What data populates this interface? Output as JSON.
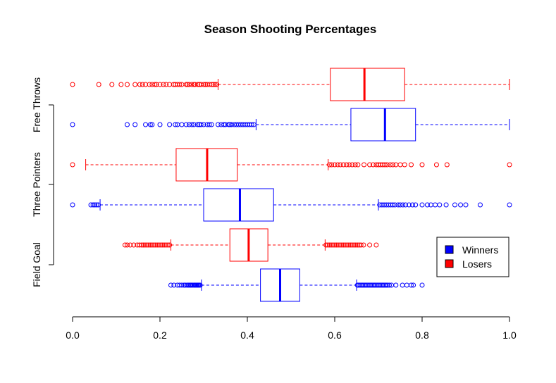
{
  "chart_data": {
    "type": "boxplot",
    "title": "Season Shooting Percentages",
    "xlabel": "",
    "ylabel": "",
    "xlim": [
      0,
      1
    ],
    "x_ticks": [
      "0.0",
      "0.2",
      "0.4",
      "0.6",
      "0.8",
      "1.0"
    ],
    "x_tick_values": [
      0,
      0.2,
      0.4,
      0.6,
      0.8,
      1.0
    ],
    "orientation": "horizontal",
    "grid": false,
    "legend_position": "bottom-right",
    "groups": [
      "Field Goal",
      "Three Pointers",
      "Free Throws"
    ],
    "series_colors": {
      "Winners": "#0000ff",
      "Losers": "#ff0000"
    },
    "legend": [
      {
        "name": "Winners",
        "color": "#0000ff"
      },
      {
        "name": "Losers",
        "color": "#ff0000"
      }
    ],
    "boxes": [
      {
        "group": "Field Goal",
        "series": "Winners",
        "whisker_low": 0.295,
        "q1": 0.43,
        "median": 0.475,
        "q3": 0.52,
        "whisker_high": 0.65,
        "outliers": [
          0.225,
          0.232,
          0.24,
          0.245,
          0.25,
          0.255,
          0.258,
          0.262,
          0.265,
          0.268,
          0.27,
          0.272,
          0.275,
          0.278,
          0.28,
          0.282,
          0.284,
          0.286,
          0.288,
          0.29,
          0.292,
          0.652,
          0.655,
          0.658,
          0.661,
          0.664,
          0.667,
          0.67,
          0.673,
          0.676,
          0.679,
          0.682,
          0.685,
          0.688,
          0.691,
          0.694,
          0.697,
          0.7,
          0.703,
          0.706,
          0.709,
          0.712,
          0.715,
          0.718,
          0.721,
          0.725,
          0.73,
          0.74,
          0.755,
          0.765,
          0.775,
          0.78,
          0.8
        ]
      },
      {
        "group": "Field Goal",
        "series": "Losers",
        "whisker_low": 0.225,
        "q1": 0.36,
        "median": 0.403,
        "q3": 0.447,
        "whisker_high": 0.578,
        "outliers": [
          0.12,
          0.125,
          0.132,
          0.14,
          0.148,
          0.153,
          0.158,
          0.162,
          0.166,
          0.17,
          0.174,
          0.178,
          0.182,
          0.186,
          0.19,
          0.194,
          0.198,
          0.202,
          0.206,
          0.21,
          0.214,
          0.218,
          0.222,
          0.58,
          0.584,
          0.588,
          0.592,
          0.596,
          0.6,
          0.604,
          0.608,
          0.612,
          0.616,
          0.62,
          0.624,
          0.628,
          0.632,
          0.636,
          0.64,
          0.644,
          0.648,
          0.652,
          0.656,
          0.66,
          0.666,
          0.68,
          0.695
        ]
      },
      {
        "group": "Three Pointers",
        "series": "Winners",
        "whisker_low": 0.063,
        "q1": 0.3,
        "median": 0.383,
        "q3": 0.46,
        "whisker_high": 0.7,
        "outliers": [
          0.0,
          0.042,
          0.047,
          0.051,
          0.055,
          0.059,
          0.703,
          0.708,
          0.713,
          0.718,
          0.723,
          0.728,
          0.733,
          0.738,
          0.745,
          0.75,
          0.756,
          0.762,
          0.77,
          0.778,
          0.785,
          0.8,
          0.812,
          0.82,
          0.83,
          0.84,
          0.855,
          0.875,
          0.888,
          0.9,
          0.933,
          1.0
        ]
      },
      {
        "group": "Three Pointers",
        "series": "Losers",
        "whisker_low": 0.03,
        "q1": 0.237,
        "median": 0.308,
        "q3": 0.377,
        "whisker_high": 0.585,
        "outliers": [
          0.0,
          0.588,
          0.593,
          0.6,
          0.607,
          0.613,
          0.62,
          0.627,
          0.633,
          0.64,
          0.647,
          0.653,
          0.667,
          0.68,
          0.688,
          0.695,
          0.7,
          0.705,
          0.71,
          0.715,
          0.72,
          0.727,
          0.733,
          0.74,
          0.75,
          0.76,
          0.775,
          0.8,
          0.833,
          0.857,
          1.0
        ]
      },
      {
        "group": "Free Throws",
        "series": "Winners",
        "whisker_low": 0.42,
        "q1": 0.637,
        "median": 0.715,
        "q3": 0.785,
        "whisker_high": 1.0,
        "outliers": [
          0.0,
          0.125,
          0.143,
          0.167,
          0.178,
          0.182,
          0.2,
          0.222,
          0.235,
          0.24,
          0.25,
          0.26,
          0.267,
          0.273,
          0.278,
          0.286,
          0.29,
          0.294,
          0.3,
          0.308,
          0.313,
          0.318,
          0.333,
          0.34,
          0.346,
          0.35,
          0.357,
          0.36,
          0.364,
          0.37,
          0.375,
          0.38,
          0.385,
          0.39,
          0.395,
          0.4,
          0.405,
          0.41,
          0.415
        ]
      },
      {
        "group": "Free Throws",
        "series": "Losers",
        "whisker_low": 0.333,
        "q1": 0.59,
        "median": 0.668,
        "q3": 0.76,
        "whisker_high": 1.0,
        "outliers": [
          0.0,
          0.06,
          0.09,
          0.111,
          0.125,
          0.143,
          0.154,
          0.16,
          0.167,
          0.176,
          0.182,
          0.188,
          0.192,
          0.2,
          0.208,
          0.214,
          0.222,
          0.231,
          0.235,
          0.24,
          0.245,
          0.25,
          0.26,
          0.263,
          0.267,
          0.273,
          0.278,
          0.28,
          0.286,
          0.29,
          0.294,
          0.3,
          0.304,
          0.308,
          0.313,
          0.318,
          0.322,
          0.326,
          0.33
        ]
      }
    ]
  }
}
